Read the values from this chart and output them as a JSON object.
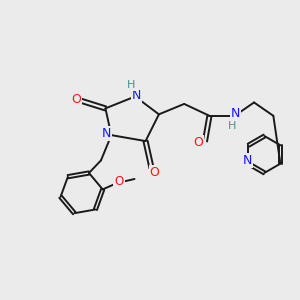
{
  "background_color": "#ebebeb",
  "bond_color": "#1a1a1a",
  "N_color": "#1414ff",
  "O_color": "#ff1414",
  "H_color": "#4a9090",
  "figsize": [
    3.0,
    3.0
  ],
  "dpi": 100,
  "xlim": [
    0,
    10
  ],
  "ylim": [
    0,
    10
  ]
}
